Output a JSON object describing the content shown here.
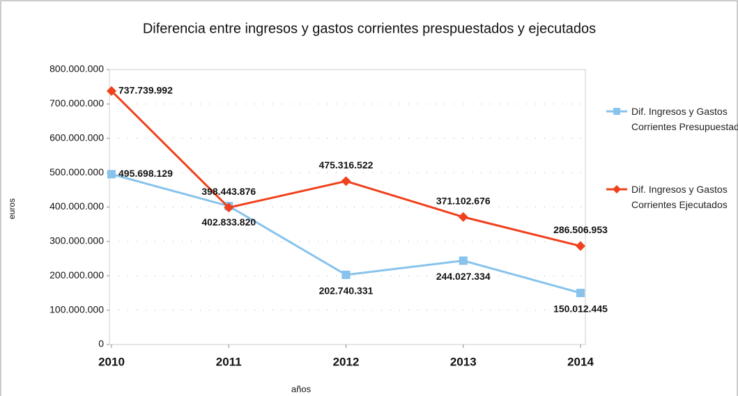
{
  "chart_data": {
    "type": "line",
    "title": "Diferencia entre ingresos y gastos corrientes prespuestados y ejecutados",
    "x_label": "años",
    "y_label": "euros",
    "categories": [
      "2010",
      "2011",
      "2012",
      "2013",
      "2014"
    ],
    "series": [
      {
        "name": "Dif. Ingresos y Gastos Corrientes Presupuestados",
        "color": "#87c3ec",
        "marker": "square",
        "values": [
          495698129,
          402833820,
          202740331,
          244027334,
          150012445
        ],
        "value_labels": [
          "495.698.129",
          "402.833.820",
          "202.740.331",
          "244.027.334",
          "150.012.445"
        ]
      },
      {
        "name": "Dif. Ingresos y Gastos Corrientes Ejecutados",
        "color": "#f0401c",
        "marker": "diamond",
        "values": [
          737739992,
          398443876,
          475316522,
          371102676,
          286506953
        ],
        "value_labels": [
          "737.739.992",
          "398.443.876",
          "475.316.522",
          "371.102.676",
          "286.506.953"
        ]
      }
    ],
    "ylim": [
      0,
      800000000
    ],
    "yticks": [
      0,
      {
        "value": 100000000,
        "label": "100.000.000"
      },
      {
        "value": 200000000,
        "label": "200.000.000"
      },
      {
        "value": 300000000,
        "label": "300.000.000"
      },
      {
        "value": 400000000,
        "label": "400.000.000"
      },
      {
        "value": 500000000,
        "label": "500.000.000"
      },
      {
        "value": 600000000,
        "label": "600.000.000"
      },
      {
        "value": 700000000,
        "label": "700.000.000"
      },
      {
        "value": 800000000,
        "label": "800.000.000"
      }
    ],
    "grid": true,
    "legend": "right"
  }
}
